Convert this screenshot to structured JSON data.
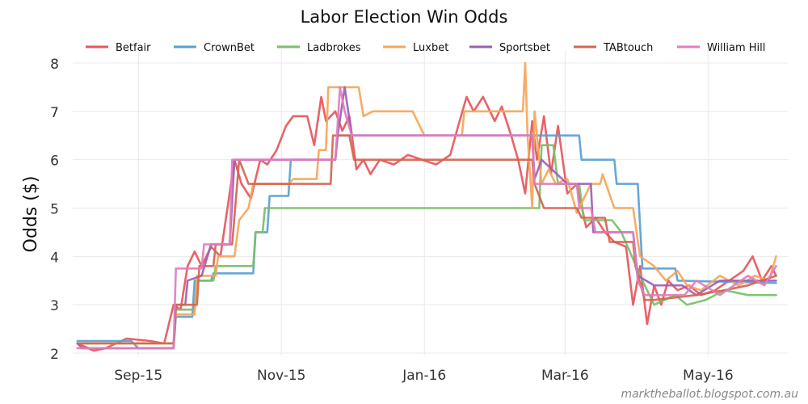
{
  "chart_data": {
    "type": "line",
    "title": "Labor Election Win Odds",
    "xlabel": "",
    "ylabel": "Odds ($)",
    "credit": "marktheballot.blogspot.com.au",
    "x_range": [
      "2015-08-18",
      "2016-06-18"
    ],
    "ylim": [
      1.95,
      8.1
    ],
    "yticks": [
      2,
      3,
      4,
      5,
      6,
      7,
      8
    ],
    "xticks": [
      {
        "date": "2015-09-15",
        "label": "Sep-15"
      },
      {
        "date": "2015-11-15",
        "label": "Nov-15"
      },
      {
        "date": "2016-01-15",
        "label": "Jan-16"
      },
      {
        "date": "2016-03-15",
        "label": "Mar-16"
      },
      {
        "date": "2016-05-15",
        "label": "May-16"
      }
    ],
    "legend_position": "top",
    "series": [
      {
        "name": "Betfair",
        "color": "#e8555a",
        "points": [
          [
            "2015-08-20",
            2.2
          ],
          [
            "2015-08-27",
            2.05
          ],
          [
            "2015-09-01",
            2.1
          ],
          [
            "2015-09-10",
            2.3
          ],
          [
            "2015-09-20",
            2.25
          ],
          [
            "2015-09-26",
            2.2
          ],
          [
            "2015-09-30",
            3.0
          ],
          [
            "2015-10-03",
            2.9
          ],
          [
            "2015-10-06",
            3.8
          ],
          [
            "2015-10-09",
            4.1
          ],
          [
            "2015-10-12",
            3.8
          ],
          [
            "2015-10-16",
            4.2
          ],
          [
            "2015-10-20",
            4.0
          ],
          [
            "2015-10-23",
            5.0
          ],
          [
            "2015-10-26",
            6.0
          ],
          [
            "2015-10-29",
            5.5
          ],
          [
            "2015-11-02",
            5.2
          ],
          [
            "2015-11-06",
            6.0
          ],
          [
            "2015-11-09",
            5.9
          ],
          [
            "2015-11-13",
            6.2
          ],
          [
            "2015-11-17",
            6.7
          ],
          [
            "2015-11-20",
            6.9
          ],
          [
            "2015-11-26",
            6.9
          ],
          [
            "2015-11-29",
            6.3
          ],
          [
            "2015-12-02",
            7.3
          ],
          [
            "2015-12-04",
            6.8
          ],
          [
            "2015-12-08",
            7.0
          ],
          [
            "2015-12-11",
            6.6
          ],
          [
            "2015-12-14",
            6.9
          ],
          [
            "2015-12-17",
            5.8
          ],
          [
            "2015-12-20",
            6.0
          ],
          [
            "2015-12-23",
            5.7
          ],
          [
            "2015-12-27",
            6.0
          ],
          [
            "2016-01-02",
            5.9
          ],
          [
            "2016-01-08",
            6.1
          ],
          [
            "2016-01-14",
            6.0
          ],
          [
            "2016-01-20",
            5.9
          ],
          [
            "2016-01-26",
            6.1
          ],
          [
            "2016-01-30",
            6.8
          ],
          [
            "2016-02-02",
            7.3
          ],
          [
            "2016-02-05",
            7.0
          ],
          [
            "2016-02-09",
            7.3
          ],
          [
            "2016-02-14",
            6.8
          ],
          [
            "2016-02-17",
            7.1
          ],
          [
            "2016-02-21",
            6.5
          ],
          [
            "2016-02-24",
            6.0
          ],
          [
            "2016-02-27",
            5.3
          ],
          [
            "2016-03-01",
            6.8
          ],
          [
            "2016-03-03",
            6.0
          ],
          [
            "2016-03-06",
            6.9
          ],
          [
            "2016-03-09",
            5.7
          ],
          [
            "2016-03-12",
            6.7
          ],
          [
            "2016-03-16",
            5.3
          ],
          [
            "2016-03-20",
            5.5
          ],
          [
            "2016-03-24",
            4.6
          ],
          [
            "2016-03-28",
            4.8
          ],
          [
            "2016-04-01",
            4.5
          ],
          [
            "2016-04-05",
            4.3
          ],
          [
            "2016-04-10",
            4.2
          ],
          [
            "2016-04-13",
            3.0
          ],
          [
            "2016-04-16",
            3.8
          ],
          [
            "2016-04-19",
            2.6
          ],
          [
            "2016-04-22",
            3.4
          ],
          [
            "2016-04-25",
            3.0
          ],
          [
            "2016-04-28",
            3.5
          ],
          [
            "2016-05-02",
            3.3
          ],
          [
            "2016-05-07",
            3.4
          ],
          [
            "2016-05-12",
            3.2
          ],
          [
            "2016-05-18",
            3.3
          ],
          [
            "2016-05-24",
            3.5
          ],
          [
            "2016-05-30",
            3.7
          ],
          [
            "2016-06-03",
            4.0
          ],
          [
            "2016-06-07",
            3.5
          ],
          [
            "2016-06-11",
            3.8
          ],
          [
            "2016-06-13",
            3.6
          ]
        ]
      },
      {
        "name": "CrownBet",
        "color": "#5a9fd4",
        "points": [
          [
            "2015-08-20",
            2.25
          ],
          [
            "2015-09-12",
            2.25
          ],
          [
            "2015-09-15",
            2.1
          ],
          [
            "2015-09-30",
            2.1
          ],
          [
            "2015-10-01",
            2.75
          ],
          [
            "2015-10-08",
            2.75
          ],
          [
            "2015-10-09",
            3.5
          ],
          [
            "2015-10-16",
            3.5
          ],
          [
            "2015-10-17",
            3.65
          ],
          [
            "2015-11-03",
            3.65
          ],
          [
            "2015-11-04",
            4.5
          ],
          [
            "2015-11-09",
            4.5
          ],
          [
            "2015-11-10",
            5.25
          ],
          [
            "2015-11-18",
            5.25
          ],
          [
            "2015-11-19",
            6.0
          ],
          [
            "2015-12-08",
            6.0
          ],
          [
            "2015-12-09",
            6.5
          ],
          [
            "2016-03-21",
            6.5
          ],
          [
            "2016-03-22",
            6.0
          ],
          [
            "2016-04-05",
            6.0
          ],
          [
            "2016-04-06",
            5.5
          ],
          [
            "2016-04-15",
            5.5
          ],
          [
            "2016-04-17",
            3.75
          ],
          [
            "2016-05-01",
            3.75
          ],
          [
            "2016-05-02",
            3.5
          ],
          [
            "2016-06-13",
            3.45
          ]
        ]
      },
      {
        "name": "Ladbrokes",
        "color": "#77c068",
        "points": [
          [
            "2015-08-20",
            2.2
          ],
          [
            "2015-09-30",
            2.2
          ],
          [
            "2015-10-01",
            2.9
          ],
          [
            "2015-10-09",
            2.9
          ],
          [
            "2015-10-10",
            3.5
          ],
          [
            "2015-10-17",
            3.5
          ],
          [
            "2015-10-18",
            3.8
          ],
          [
            "2015-11-03",
            3.8
          ],
          [
            "2015-11-04",
            4.5
          ],
          [
            "2015-11-07",
            4.5
          ],
          [
            "2015-11-08",
            5.0
          ],
          [
            "2016-03-04",
            5.0
          ],
          [
            "2016-03-05",
            6.3
          ],
          [
            "2016-03-10",
            6.3
          ],
          [
            "2016-03-12",
            5.5
          ],
          [
            "2016-03-21",
            5.5
          ],
          [
            "2016-03-23",
            4.75
          ],
          [
            "2016-04-04",
            4.75
          ],
          [
            "2016-04-08",
            4.5
          ],
          [
            "2016-04-17",
            3.5
          ],
          [
            "2016-04-22",
            3.0
          ],
          [
            "2016-05-01",
            3.2
          ],
          [
            "2016-05-06",
            3.0
          ],
          [
            "2016-05-14",
            3.1
          ],
          [
            "2016-05-22",
            3.3
          ],
          [
            "2016-06-01",
            3.2
          ],
          [
            "2016-06-05",
            3.2
          ],
          [
            "2016-06-13",
            3.2
          ]
        ]
      },
      {
        "name": "Luxbet",
        "color": "#f6a559",
        "points": [
          [
            "2015-08-20",
            2.2
          ],
          [
            "2015-09-30",
            2.2
          ],
          [
            "2015-10-01",
            2.8
          ],
          [
            "2015-10-09",
            2.8
          ],
          [
            "2015-10-10",
            3.6
          ],
          [
            "2015-10-18",
            3.6
          ],
          [
            "2015-10-19",
            4.0
          ],
          [
            "2015-10-26",
            4.0
          ],
          [
            "2015-10-28",
            4.75
          ],
          [
            "2015-11-01",
            5.0
          ],
          [
            "2015-11-03",
            5.5
          ],
          [
            "2015-11-18",
            5.5
          ],
          [
            "2015-11-20",
            5.6
          ],
          [
            "2015-11-30",
            5.6
          ],
          [
            "2015-12-01",
            6.2
          ],
          [
            "2015-12-04",
            6.2
          ],
          [
            "2015-12-05",
            7.5
          ],
          [
            "2015-12-18",
            7.5
          ],
          [
            "2015-12-20",
            6.9
          ],
          [
            "2015-12-24",
            7.0
          ],
          [
            "2016-01-10",
            7.0
          ],
          [
            "2016-01-15",
            6.5
          ],
          [
            "2016-01-31",
            6.5
          ],
          [
            "2016-02-01",
            7.0
          ],
          [
            "2016-02-26",
            7.0
          ],
          [
            "2016-02-27",
            8.0
          ],
          [
            "2016-02-28",
            6.5
          ],
          [
            "2016-03-01",
            5.0
          ],
          [
            "2016-03-02",
            7.0
          ],
          [
            "2016-03-05",
            5.5
          ],
          [
            "2016-03-08",
            5.8
          ],
          [
            "2016-03-11",
            5.5
          ],
          [
            "2016-03-16",
            5.6
          ],
          [
            "2016-03-20",
            4.9
          ],
          [
            "2016-03-26",
            5.5
          ],
          [
            "2016-03-30",
            5.5
          ],
          [
            "2016-03-31",
            5.7
          ],
          [
            "2016-04-05",
            5.0
          ],
          [
            "2016-04-13",
            5.0
          ],
          [
            "2016-04-16",
            4.0
          ],
          [
            "2016-04-22",
            3.8
          ],
          [
            "2016-04-27",
            3.5
          ],
          [
            "2016-05-02",
            3.7
          ],
          [
            "2016-05-06",
            3.4
          ],
          [
            "2016-05-12",
            3.3
          ],
          [
            "2016-05-20",
            3.6
          ],
          [
            "2016-05-28",
            3.4
          ],
          [
            "2016-06-04",
            3.6
          ],
          [
            "2016-06-10",
            3.5
          ],
          [
            "2016-06-13",
            4.0
          ]
        ]
      },
      {
        "name": "Sportsbet",
        "color": "#9c5fb5",
        "points": [
          [
            "2015-08-20",
            2.2
          ],
          [
            "2015-08-22",
            2.1
          ],
          [
            "2015-09-30",
            2.1
          ],
          [
            "2015-10-01",
            3.0
          ],
          [
            "2015-10-05",
            3.0
          ],
          [
            "2015-10-06",
            3.5
          ],
          [
            "2015-10-12",
            3.6
          ],
          [
            "2015-10-16",
            4.25
          ],
          [
            "2015-10-24",
            4.25
          ],
          [
            "2015-10-26",
            6.0
          ],
          [
            "2015-12-08",
            6.0
          ],
          [
            "2015-12-09",
            6.5
          ],
          [
            "2015-12-12",
            7.5
          ],
          [
            "2015-12-15",
            6.5
          ],
          [
            "2016-03-01",
            6.5
          ],
          [
            "2016-03-02",
            5.6
          ],
          [
            "2016-03-05",
            6.0
          ],
          [
            "2016-03-16",
            5.5
          ],
          [
            "2016-03-26",
            5.5
          ],
          [
            "2016-03-27",
            4.5
          ],
          [
            "2016-04-13",
            4.5
          ],
          [
            "2016-04-15",
            3.6
          ],
          [
            "2016-04-22",
            3.4
          ],
          [
            "2016-05-04",
            3.4
          ],
          [
            "2016-05-10",
            3.2
          ],
          [
            "2016-05-20",
            3.5
          ],
          [
            "2016-06-01",
            3.5
          ],
          [
            "2016-06-13",
            3.5
          ]
        ]
      },
      {
        "name": "TABtouch",
        "color": "#d46450",
        "points": [
          [
            "2015-08-20",
            2.2
          ],
          [
            "2015-09-30",
            2.2
          ],
          [
            "2015-10-01",
            3.0
          ],
          [
            "2015-10-10",
            3.0
          ],
          [
            "2015-10-11",
            3.8
          ],
          [
            "2015-10-17",
            3.8
          ],
          [
            "2015-10-18",
            4.25
          ],
          [
            "2015-10-25",
            4.25
          ],
          [
            "2015-10-28",
            6.0
          ],
          [
            "2015-11-01",
            5.5
          ],
          [
            "2015-11-26",
            5.5
          ],
          [
            "2015-11-27",
            5.5
          ],
          [
            "2015-12-06",
            5.5
          ],
          [
            "2015-12-07",
            6.5
          ],
          [
            "2015-12-14",
            6.5
          ],
          [
            "2015-12-16",
            6.0
          ],
          [
            "2016-03-01",
            6.0
          ],
          [
            "2016-03-02",
            5.5
          ],
          [
            "2016-03-06",
            5.0
          ],
          [
            "2016-03-20",
            5.0
          ],
          [
            "2016-03-22",
            4.8
          ],
          [
            "2016-04-01",
            4.8
          ],
          [
            "2016-04-03",
            4.3
          ],
          [
            "2016-04-13",
            4.3
          ],
          [
            "2016-04-14",
            3.8
          ],
          [
            "2016-04-18",
            3.1
          ],
          [
            "2016-04-22",
            3.1
          ],
          [
            "2016-05-10",
            3.2
          ],
          [
            "2016-05-22",
            3.3
          ],
          [
            "2016-06-01",
            3.4
          ],
          [
            "2016-06-13",
            3.6
          ]
        ]
      },
      {
        "name": "William Hill",
        "color": "#e07dbd",
        "points": [
          [
            "2015-08-20",
            2.1
          ],
          [
            "2015-09-30",
            2.1
          ],
          [
            "2015-10-01",
            3.75
          ],
          [
            "2015-10-12",
            3.75
          ],
          [
            "2015-10-13",
            4.25
          ],
          [
            "2015-10-24",
            4.25
          ],
          [
            "2015-10-25",
            6.0
          ],
          [
            "2015-12-08",
            6.0
          ],
          [
            "2015-12-10",
            7.5
          ],
          [
            "2015-12-12",
            7.0
          ],
          [
            "2015-12-15",
            6.5
          ],
          [
            "2016-03-01",
            6.5
          ],
          [
            "2016-03-02",
            5.5
          ],
          [
            "2016-03-20",
            5.5
          ],
          [
            "2016-03-21",
            5.0
          ],
          [
            "2016-03-26",
            5.0
          ],
          [
            "2016-03-28",
            4.5
          ],
          [
            "2016-04-13",
            4.5
          ],
          [
            "2016-04-15",
            3.5
          ],
          [
            "2016-04-18",
            3.2
          ],
          [
            "2016-05-05",
            3.2
          ],
          [
            "2016-05-10",
            3.5
          ],
          [
            "2016-05-20",
            3.2
          ],
          [
            "2016-06-01",
            3.6
          ],
          [
            "2016-06-08",
            3.4
          ],
          [
            "2016-06-13",
            3.8
          ]
        ]
      }
    ]
  }
}
